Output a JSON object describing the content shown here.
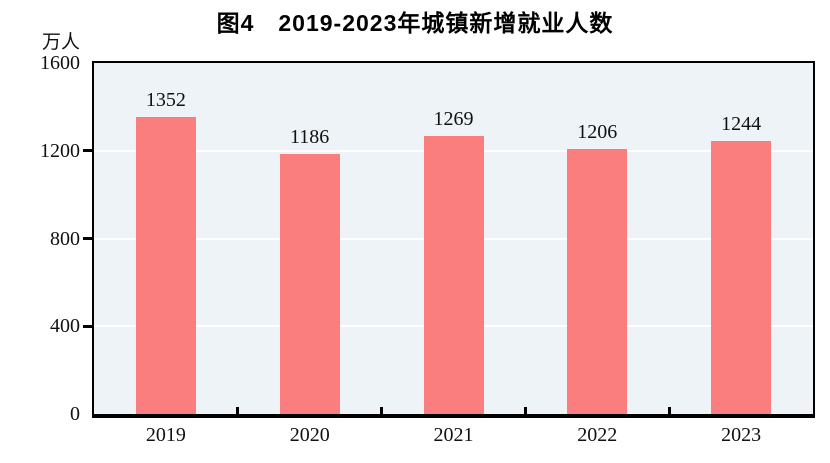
{
  "chart_data": {
    "type": "bar",
    "title": "图4　2019-2023年城镇新增就业人数",
    "unit": "万人",
    "categories": [
      "2019",
      "2020",
      "2021",
      "2022",
      "2023"
    ],
    "values": [
      1352,
      1186,
      1269,
      1206,
      1244
    ],
    "value_labels": [
      "1352",
      "1186",
      "1269",
      "1206",
      "1244"
    ],
    "ylim": [
      0,
      1600
    ],
    "yticks": [
      0,
      400,
      800,
      1200,
      1600
    ],
    "ytick_labels": [
      "0",
      "400",
      "800",
      "1200",
      "1600"
    ],
    "gridlines_at": [
      400,
      800,
      1200
    ],
    "legend": "none",
    "colors": {
      "bar_fill": "#FA7E7E",
      "plot_background": "#EDF3F6",
      "gridline": "#FFFFFF",
      "axis": "#000000",
      "text": "#111111",
      "page_background": "#FFFFFF"
    }
  }
}
